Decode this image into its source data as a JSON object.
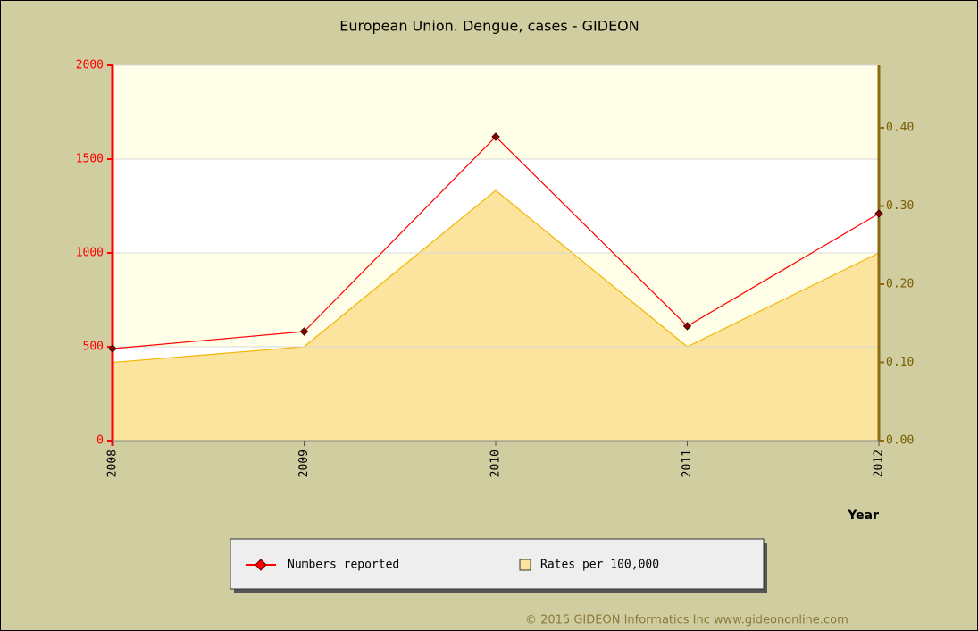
{
  "chart_data": {
    "type": "line",
    "title": "European Union. Dengue, cases - GIDEON",
    "x_label": "Year",
    "categories": [
      "2008",
      "2009",
      "2010",
      "2011",
      "2012"
    ],
    "series": [
      {
        "name": "Numbers reported",
        "type": "line",
        "color": "#ff0000",
        "marker_color": "#8b0000",
        "values": [
          490,
          581,
          1619,
          610,
          1210
        ]
      },
      {
        "name": "Rates per 100,000",
        "type": "area",
        "axis": "y2",
        "color": "#fce49e",
        "edge_color": "#f2b600",
        "values": [
          0.1,
          0.12,
          0.32,
          0.12,
          0.24
        ]
      }
    ],
    "ylim": [
      0,
      2000
    ],
    "yticks": [
      0,
      500,
      1000,
      1500,
      2000
    ],
    "y2lim": [
      0,
      0.48
    ],
    "y2ticks": [
      {
        "value": 0,
        "label": "0.00"
      },
      {
        "value": 0.1,
        "label": "0.10"
      },
      {
        "value": 0.2,
        "label": "0.20"
      },
      {
        "value": 0.3,
        "label": "0.30"
      },
      {
        "value": 0.4,
        "label": "0.40"
      }
    ],
    "grid": true,
    "legend": "bottom"
  },
  "footer": "© 2015 GIDEON Informatics Inc www.gideononline.com"
}
